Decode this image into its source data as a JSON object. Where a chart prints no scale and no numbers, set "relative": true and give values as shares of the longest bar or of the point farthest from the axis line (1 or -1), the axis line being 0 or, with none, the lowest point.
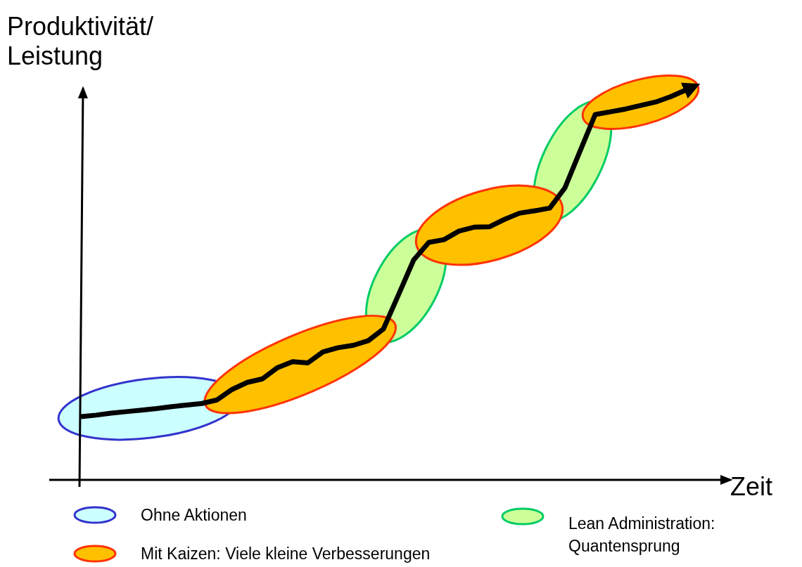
{
  "chart_data": {
    "type": "line",
    "relative": true,
    "ylabel": "Produktivität/\nLeistung",
    "xlabel": "Zeit",
    "categories": [
      null,
      null,
      null,
      null,
      null,
      null,
      null,
      null,
      null,
      null,
      null,
      null,
      null,
      null,
      null,
      null,
      null,
      null,
      null,
      null,
      null,
      null,
      null,
      null,
      null,
      null,
      null,
      null,
      null,
      null,
      null,
      null,
      null,
      null,
      null,
      null,
      null,
      null,
      null,
      null,
      null
    ],
    "series": [
      {
        "color": "#000000",
        "values": [
          0.162,
          0.166,
          0.171,
          0.175,
          0.179,
          0.183,
          0.188,
          0.192,
          0.196,
          0.205,
          0.232,
          0.25,
          0.259,
          0.288,
          0.303,
          0.3,
          0.328,
          0.339,
          0.345,
          0.357,
          0.387,
          0.475,
          0.564,
          0.609,
          0.616,
          0.638,
          0.648,
          0.649,
          0.668,
          0.684,
          0.69,
          0.697,
          0.749,
          0.843,
          0.937,
          0.944,
          0.951,
          0.96,
          0.969,
          0.983,
          1
        ]
      }
    ],
    "annotations": [
      "Ohne Aktionen",
      "Mit Kaizen: Viele kleine Verbesserungen",
      "Lean Administration:\nQuantensprung"
    ],
    "marker": "none",
    "line_style": "solid",
    "grid": false
  }
}
